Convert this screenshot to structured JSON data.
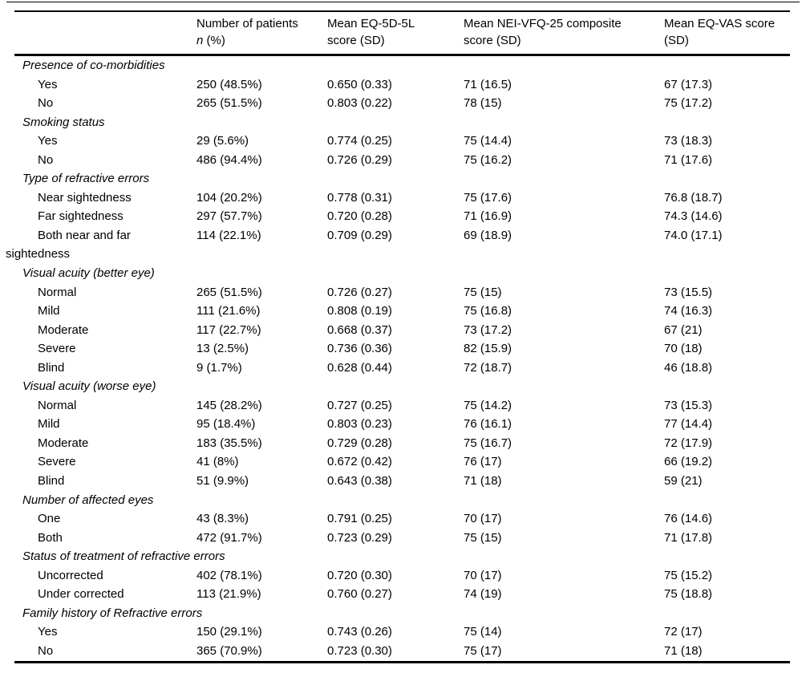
{
  "table": {
    "colors": {
      "text": "#000000",
      "rule": "#000000",
      "background": "#ffffff"
    },
    "columns": [
      {
        "line1": "Number of patients",
        "line2_italic": "n",
        "line2_rest": " (%)"
      },
      {
        "line1": "Mean EQ-5D-5L",
        "line2": "score (SD)"
      },
      {
        "line1": "Mean NEI-VFQ-25 composite",
        "line2": "score (SD)"
      },
      {
        "line1": "Mean EQ-VAS score",
        "line2": "(SD)"
      }
    ],
    "sections": [
      {
        "header": "Presence of co-morbidities",
        "rows": [
          {
            "label": "Yes",
            "values": [
              "250 (48.5%)",
              "0.650 (0.33)",
              "71 (16.5)",
              "67 (17.3)"
            ]
          },
          {
            "label": "No",
            "values": [
              "265 (51.5%)",
              "0.803 (0.22)",
              "78 (15)",
              "75 (17.2)"
            ]
          }
        ]
      },
      {
        "header": "Smoking status",
        "rows": [
          {
            "label": "Yes",
            "values": [
              "29 (5.6%)",
              "0.774 (0.25)",
              "75 (14.4)",
              "73 (18.3)"
            ]
          },
          {
            "label": "No",
            "values": [
              "486 (94.4%)",
              "0.726 (0.29)",
              "75 (16.2)",
              "71 (17.6)"
            ]
          }
        ]
      },
      {
        "header": "Type of refractive errors",
        "rows": [
          {
            "label": "Near sightedness",
            "values": [
              "104 (20.2%)",
              "0.778 (0.31)",
              "75 (17.6)",
              "76.8 (18.7)"
            ]
          },
          {
            "label": "Far sightedness",
            "values": [
              "297 (57.7%)",
              "0.720 (0.28)",
              "71 (16.9)",
              "74.3 (14.6)"
            ]
          },
          {
            "label": "Both near and far\nsightedness",
            "hang": true,
            "values": [
              "114 (22.1%)",
              "0.709 (0.29)",
              "69 (18.9)",
              "74.0 (17.1)"
            ]
          }
        ]
      },
      {
        "header": "Visual acuity (better eye)",
        "rows": [
          {
            "label": "Normal",
            "values": [
              "265 (51.5%)",
              "0.726 (0.27)",
              "75 (15)",
              "73 (15.5)"
            ]
          },
          {
            "label": "Mild",
            "values": [
              "111 (21.6%)",
              "0.808 (0.19)",
              "75 (16.8)",
              "74 (16.3)"
            ]
          },
          {
            "label": "Moderate",
            "values": [
              "117 (22.7%)",
              "0.668 (0.37)",
              "73 (17.2)",
              "67 (21)"
            ]
          },
          {
            "label": "Severe",
            "values": [
              "13 (2.5%)",
              "0.736 (0.36)",
              "82 (15.9)",
              "70 (18)"
            ]
          },
          {
            "label": "Blind",
            "values": [
              "9 (1.7%)",
              "0.628 (0.44)",
              "72 (18.7)",
              "46 (18.8)"
            ]
          }
        ]
      },
      {
        "header": "Visual acuity (worse eye)",
        "rows": [
          {
            "label": "Normal",
            "values": [
              "145 (28.2%)",
              "0.727 (0.25)",
              "75 (14.2)",
              "73 (15.3)"
            ]
          },
          {
            "label": "Mild",
            "values": [
              "95 (18.4%)",
              "0.803 (0.23)",
              "76 (16.1)",
              "77 (14.4)"
            ]
          },
          {
            "label": "Moderate",
            "values": [
              "183 (35.5%)",
              "0.729 (0.28)",
              "75 (16.7)",
              "72 (17.9)"
            ]
          },
          {
            "label": "Severe",
            "values": [
              "41 (8%)",
              "0.672 (0.42)",
              "76 (17)",
              "66 (19.2)"
            ]
          },
          {
            "label": "Blind",
            "values": [
              "51 (9.9%)",
              "0.643 (0.38)",
              "71 (18)",
              "59 (21)"
            ]
          }
        ]
      },
      {
        "header": "Number of affected eyes",
        "rows": [
          {
            "label": "One",
            "values": [
              "43 (8.3%)",
              "0.791 (0.25)",
              "70 (17)",
              "76 (14.6)"
            ]
          },
          {
            "label": "Both",
            "values": [
              "472 (91.7%)",
              "0.723 (0.29)",
              "75 (15)",
              "71 (17.8)"
            ]
          }
        ]
      },
      {
        "header": "Status of treatment of refractive errors",
        "rows": [
          {
            "label": "Uncorrected",
            "values": [
              "402 (78.1%)",
              "0.720 (0.30)",
              "70 (17)",
              "75 (15.2)"
            ]
          },
          {
            "label": "Under corrected",
            "values": [
              "113 (21.9%)",
              "0.760 (0.27)",
              "74 (19)",
              "75 (18.8)"
            ]
          }
        ]
      },
      {
        "header": "Family history of Refractive errors",
        "rows": [
          {
            "label": "Yes",
            "values": [
              "150 (29.1%)",
              "0.743 (0.26)",
              "75 (14)",
              "72 (17)"
            ]
          },
          {
            "label": "No",
            "values": [
              "365 (70.9%)",
              "0.723 (0.30)",
              "75 (17)",
              "71 (18)"
            ]
          }
        ]
      }
    ]
  }
}
